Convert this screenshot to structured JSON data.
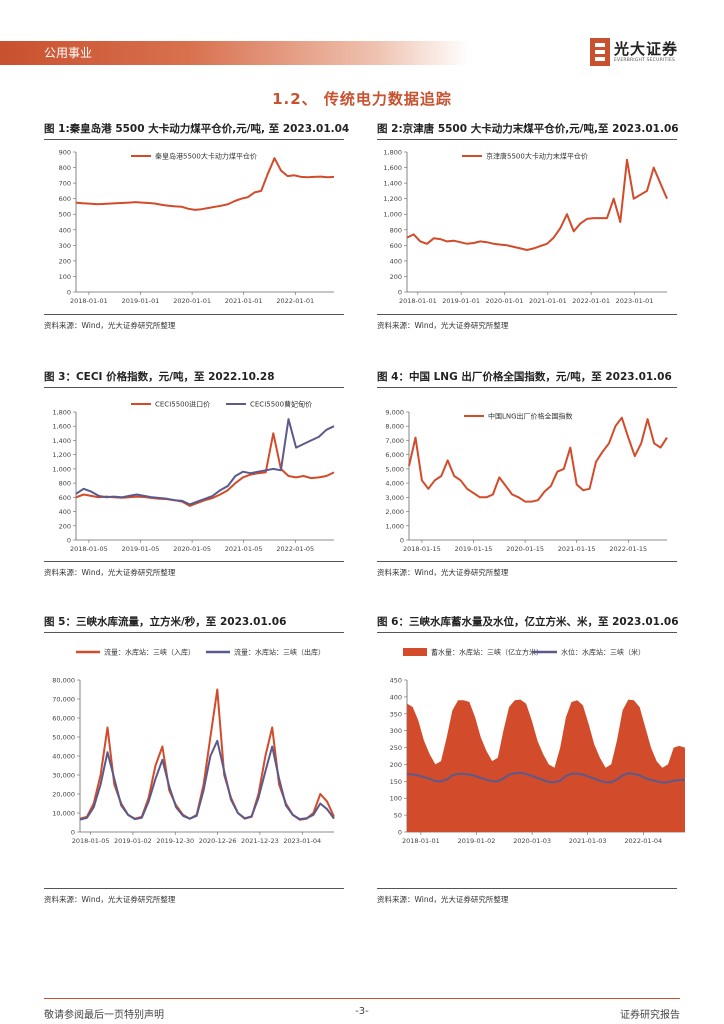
{
  "header": {
    "section_label": "公用事业",
    "brand_cn": "光大证券",
    "brand_en": "EVERBRIGHT SECURITIES"
  },
  "section_title": "1.2、 传统电力数据追踪",
  "figures": [
    {
      "title": "图 1:秦皇岛港 5500 大卡动力煤平仓价,元/吨, 至 2023.01.04",
      "source": "资料来源：Wind，光大证券研究所整理"
    },
    {
      "title": "图 2:京津唐 5500 大卡动力末煤平仓价,元/吨,至 2023.01.06",
      "source": "资料来源：Wind，光大证券研究所整理"
    },
    {
      "title": "图 3：CECI 价格指数，元/吨，至 2022.10.28",
      "source": "资料来源：Wind，光大证券研究所整理"
    },
    {
      "title": "图 4：中国 LNG 出厂价格全国指数，元/吨，至 2023.01.06",
      "source": "资料来源：Wind，光大证券研究所整理"
    },
    {
      "title": "图 5：三峡水库流量，立方米/秒，至 2023.01.06",
      "source": "资料来源：Wind，光大证券研究所整理"
    },
    {
      "title": "图 6：三峡水库蓄水量及水位，亿立方米、米，至 2023.01.06",
      "source": "资料来源：Wind，光大证券研究所整理"
    }
  ],
  "footer": {
    "left": "敬请参阅最后一页特别声明",
    "page": "-3-",
    "right": "证券研究报告"
  },
  "colors": {
    "accent": "#c8512f",
    "series_red": "#d24b2a",
    "series_purple": "#5a5a8c"
  },
  "chart_data": [
    {
      "type": "line",
      "title": "秦皇岛港5500大卡动力煤平仓价",
      "unit": "元/吨",
      "x_ticks": [
        "2018-01-01",
        "2019-01-01",
        "2020-01-01",
        "2021-01-01",
        "2022-01-01"
      ],
      "y_ticks": [
        "0",
        "100",
        "200",
        "300",
        "400",
        "500",
        "600",
        "700",
        "800",
        "900"
      ],
      "ylim": [
        0,
        900
      ],
      "series": [
        {
          "name": "秦皇岛港5500大卡动力煤平仓价",
          "color": "#d24b2a",
          "values": [
            575,
            570,
            568,
            565,
            566,
            568,
            570,
            572,
            575,
            578,
            575,
            572,
            568,
            560,
            555,
            550,
            548,
            535,
            528,
            532,
            540,
            548,
            555,
            565,
            585,
            600,
            610,
            640,
            650,
            760,
            860,
            780,
            745,
            750,
            740,
            738,
            740,
            742,
            738,
            740
          ]
        }
      ]
    },
    {
      "type": "line",
      "title": "京津唐5500大卡动力末煤平仓价",
      "unit": "元/吨",
      "x_ticks": [
        "2018-01-01",
        "2019-01-01",
        "2020-01-01",
        "2021-01-01",
        "2022-01-01",
        "2023-01-01"
      ],
      "y_ticks": [
        "0",
        "200",
        "400",
        "600",
        "800",
        "1,000",
        "1,200",
        "1,400",
        "1,600",
        "1,800"
      ],
      "ylim": [
        0,
        1800
      ],
      "series": [
        {
          "name": "京津唐5500大卡动力末煤平仓价",
          "color": "#d24b2a",
          "values": [
            700,
            740,
            650,
            620,
            690,
            680,
            650,
            660,
            640,
            620,
            630,
            650,
            640,
            620,
            610,
            600,
            580,
            560,
            540,
            560,
            590,
            620,
            700,
            820,
            1000,
            780,
            880,
            940,
            950,
            950,
            950,
            1200,
            900,
            1700,
            1200,
            1250,
            1300,
            1600,
            1400,
            1200
          ]
        }
      ]
    },
    {
      "type": "line",
      "title": "CECI价格指数",
      "unit": "元/吨",
      "x_ticks": [
        "2018-01-05",
        "2019-01-05",
        "2020-01-05",
        "2021-01-05",
        "2022-01-05"
      ],
      "y_ticks": [
        "0",
        "200",
        "400",
        "600",
        "800",
        "1,000",
        "1,200",
        "1,400",
        "1,600",
        "1,800"
      ],
      "ylim": [
        0,
        1800
      ],
      "series": [
        {
          "name": "CECI5500进口价",
          "color": "#d24b2a",
          "values": [
            600,
            640,
            620,
            600,
            610,
            600,
            595,
            600,
            610,
            605,
            590,
            580,
            575,
            560,
            540,
            480,
            520,
            560,
            590,
            640,
            700,
            800,
            880,
            920,
            940,
            950,
            1500,
            1000,
            900,
            880,
            900,
            870,
            880,
            900,
            950
          ]
        },
        {
          "name": "CECI5500曹妃甸价",
          "color": "#5a5a8c",
          "values": [
            650,
            720,
            680,
            620,
            600,
            610,
            600,
            620,
            640,
            620,
            600,
            590,
            580,
            560,
            550,
            500,
            540,
            580,
            620,
            700,
            760,
            900,
            960,
            940,
            960,
            980,
            1000,
            980,
            1700,
            1300,
            1350,
            1400,
            1450,
            1550,
            1600
          ]
        }
      ]
    },
    {
      "type": "line",
      "title": "中国LNG出厂价格全国指数",
      "unit": "元/吨",
      "x_ticks": [
        "2018-01-15",
        "2019-01-15",
        "2020-01-15",
        "2021-01-15",
        "2022-01-15"
      ],
      "y_ticks": [
        "0",
        "1,000",
        "2,000",
        "3,000",
        "4,000",
        "5,000",
        "6,000",
        "7,000",
        "8,000",
        "9,000"
      ],
      "ylim": [
        0,
        9000
      ],
      "series": [
        {
          "name": "中国LNG出厂价格全国指数",
          "color": "#d24b2a",
          "values": [
            5200,
            7200,
            4200,
            3600,
            4200,
            4500,
            5600,
            4500,
            4200,
            3600,
            3300,
            3000,
            3000,
            3200,
            4400,
            3800,
            3200,
            3000,
            2700,
            2700,
            2800,
            3400,
            3800,
            4800,
            5000,
            6500,
            3900,
            3500,
            3600,
            5500,
            6200,
            6800,
            8000,
            8600,
            7200,
            5900,
            6800,
            8500,
            6800,
            6500,
            7200
          ]
        }
      ]
    },
    {
      "type": "line",
      "title": "三峡水库流量",
      "unit": "立方米/秒",
      "x_ticks": [
        "2018-01-05",
        "2019-01-02",
        "2019-12-30",
        "2020-12-26",
        "2021-12-23",
        "2023-01-04"
      ],
      "y_ticks": [
        "0",
        "10,000",
        "20,000",
        "30,000",
        "40,000",
        "50,000",
        "60,000",
        "70,000",
        "80,000"
      ],
      "ylim": [
        0,
        80000
      ],
      "series": [
        {
          "name": "流量：水库站：三峡（入库）",
          "color": "#d24b2a",
          "values": [
            7000,
            8000,
            15000,
            30000,
            55000,
            25000,
            15000,
            9000,
            7000,
            8000,
            18000,
            35000,
            45000,
            22000,
            14000,
            9000,
            7000,
            9000,
            25000,
            50000,
            75000,
            30000,
            18000,
            10000,
            7000,
            8000,
            20000,
            40000,
            55000,
            25000,
            15000,
            9000,
            6500,
            7000,
            10000,
            20000,
            16000,
            8000
          ]
        },
        {
          "name": "流量：水库站：三峡（出库）",
          "color": "#5a5a8c",
          "values": [
            6500,
            7500,
            13000,
            25000,
            42000,
            28000,
            14000,
            9000,
            6800,
            7500,
            16000,
            28000,
            38000,
            24000,
            13000,
            8500,
            7000,
            8500,
            22000,
            40000,
            48000,
            32000,
            17000,
            10000,
            7200,
            8200,
            18000,
            32000,
            45000,
            28000,
            14000,
            9000,
            6800,
            7200,
            9000,
            15000,
            12000,
            7000
          ]
        }
      ]
    },
    {
      "type": "area",
      "title": "三峡水库蓄水量及水位",
      "unit": "亿立方米、米",
      "x_ticks": [
        "2018-01-01",
        "2019-01-02",
        "2020-01-03",
        "2021-01-03",
        "2022-01-04"
      ],
      "y_ticks": [
        "0",
        "50",
        "100",
        "150",
        "200",
        "250",
        "300",
        "350",
        "400",
        "450"
      ],
      "ylim": [
        0,
        450
      ],
      "series": [
        {
          "name": "蓄水量：水库站：三峡（亿立方米）",
          "color": "#d24b2a",
          "values": [
            380,
            370,
            330,
            270,
            230,
            200,
            210,
            280,
            360,
            390,
            390,
            385,
            340,
            280,
            240,
            210,
            220,
            300,
            370,
            390,
            392,
            380,
            330,
            270,
            230,
            200,
            190,
            250,
            340,
            385,
            390,
            375,
            320,
            260,
            220,
            190,
            200,
            270,
            360,
            392,
            390,
            370,
            310,
            250,
            210,
            190,
            200,
            250,
            255,
            250
          ]
        },
        {
          "name": "水位：水库站：三峡（米）",
          "color": "#5a5a8c",
          "values": [
            172,
            170,
            168,
            162,
            158,
            150,
            150,
            155,
            168,
            172,
            172,
            170,
            166,
            160,
            155,
            150,
            150,
            158,
            170,
            174,
            175,
            172,
            166,
            160,
            154,
            148,
            147,
            152,
            166,
            172,
            173,
            170,
            164,
            158,
            152,
            147,
            147,
            155,
            168,
            174,
            172,
            168,
            160,
            154,
            150,
            146,
            147,
            152,
            154,
            154
          ]
        }
      ]
    }
  ]
}
